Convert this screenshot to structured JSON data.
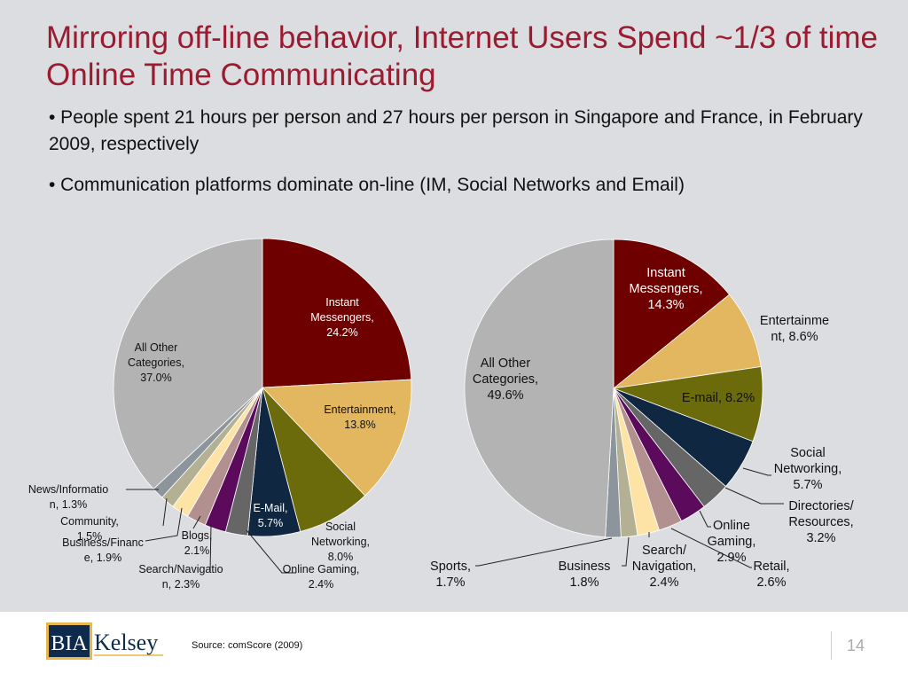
{
  "slide": {
    "title": "Mirroring off-line behavior, Internet Users Spend ~1/3 of time Online Time Communicating",
    "bullets": [
      "• People spent 21 hours per person and 27 hours per person in Singapore and France, in February 2009, respectively",
      "• Communication platforms dominate on-line (IM, Social Networks and Email)"
    ],
    "source": "Source: comScore (2009)",
    "page_number": "14",
    "logo": {
      "part1": "BIA",
      "part2": "Kelsey"
    }
  },
  "chart_data": [
    {
      "type": "pie",
      "title": "",
      "slices": [
        {
          "label": "Instant Messengers",
          "value": 24.2,
          "color": "#6e0000",
          "label_lines": [
            "Instant",
            "Messengers,",
            "24.2%"
          ]
        },
        {
          "label": "Entertainment",
          "value": 13.8,
          "color": "#e3b660",
          "label_lines": [
            "Entertainment,",
            "13.8%"
          ]
        },
        {
          "label": "Social Networking",
          "value": 8.0,
          "color": "#6b6b0c",
          "label_lines": [
            "Social",
            "Networking,",
            "8.0%"
          ]
        },
        {
          "label": "E-Mail",
          "value": 5.7,
          "color": "#0f2740",
          "label_lines": [
            "E-Mail,",
            "5.7%"
          ]
        },
        {
          "label": "Online Gaming",
          "value": 2.4,
          "color": "#666666",
          "label_lines": [
            "Online Gaming,",
            "2.4%"
          ]
        },
        {
          "label": "Search/Navigation",
          "value": 2.3,
          "color": "#5c0a5c",
          "label_lines": [
            "Search/Navigatio",
            "n, 2.3%"
          ]
        },
        {
          "label": "Blogs",
          "value": 2.1,
          "color": "#b39090",
          "label_lines": [
            "Blogs,",
            "2.1%"
          ]
        },
        {
          "label": "Business/Finance",
          "value": 1.9,
          "color": "#fde3a6",
          "label_lines": [
            "Business/Financ",
            "e, 1.9%"
          ]
        },
        {
          "label": "Community",
          "value": 1.5,
          "color": "#b3b094",
          "label_lines": [
            "Community,",
            "1.5%"
          ]
        },
        {
          "label": "News/Information",
          "value": 1.3,
          "color": "#8c949c",
          "label_lines": [
            "News/Informatio",
            "n, 1.3%"
          ]
        },
        {
          "label": "All Other Categories",
          "value": 37.0,
          "color": "#b3b3b3",
          "label_lines": [
            "All Other",
            "Categories,",
            "37.0%"
          ]
        }
      ]
    },
    {
      "type": "pie",
      "title": "",
      "slices": [
        {
          "label": "Instant Messengers",
          "value": 14.3,
          "color": "#6e0000",
          "label_lines": [
            "Instant",
            "Messengers,",
            "14.3%"
          ]
        },
        {
          "label": "Entertainment",
          "value": 8.6,
          "color": "#e3b660",
          "label_lines": [
            "Entertainme",
            "nt, 8.6%"
          ]
        },
        {
          "label": "E-mail",
          "value": 8.2,
          "color": "#6b6b0c",
          "label_lines": [
            "E-mail, 8.2%"
          ]
        },
        {
          "label": "Social Networking",
          "value": 5.7,
          "color": "#0f2740",
          "label_lines": [
            "Social",
            "Networking,",
            "5.7%"
          ]
        },
        {
          "label": "Directories/Resources",
          "value": 3.2,
          "color": "#666666",
          "label_lines": [
            "Directories/",
            "Resources,",
            "3.2%"
          ]
        },
        {
          "label": "Online Gaming",
          "value": 2.9,
          "color": "#5c0a5c",
          "label_lines": [
            "Online",
            "Gaming,",
            "2.9%"
          ]
        },
        {
          "label": "Retail",
          "value": 2.6,
          "color": "#b39090",
          "label_lines": [
            "Retail,",
            "2.6%"
          ]
        },
        {
          "label": "Search/Navigation",
          "value": 2.4,
          "color": "#fde3a6",
          "label_lines": [
            "Search/",
            "Navigation,",
            "2.4%"
          ]
        },
        {
          "label": "Business",
          "value": 1.8,
          "color": "#b3b094",
          "label_lines": [
            "Business",
            "1.8%"
          ]
        },
        {
          "label": "Sports",
          "value": 1.7,
          "color": "#8c949c",
          "label_lines": [
            "Sports,",
            "1.7%"
          ]
        },
        {
          "label": "All Other Categories",
          "value": 49.6,
          "color": "#b3b3b3",
          "label_lines": [
            "All Other",
            "Categories,",
            "49.6%"
          ]
        }
      ]
    }
  ]
}
